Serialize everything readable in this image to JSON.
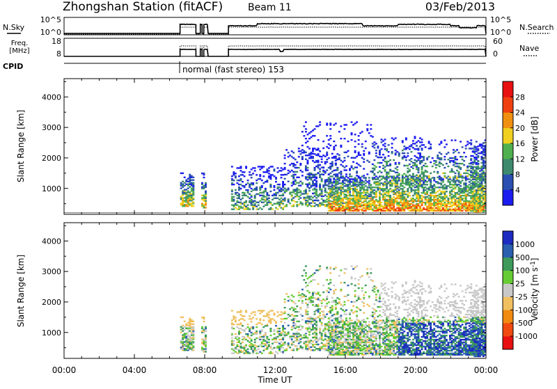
{
  "header": {
    "station": "Zhongshan Station (fitACF)",
    "beam": "Beam 11",
    "date": "03/Feb/2013"
  },
  "summary_panels": {
    "nsky_label": "N.Sky",
    "nsky_ticks": [
      "10^5",
      "10^0"
    ],
    "nsearch_label": "N.Search",
    "nsearch_ticks": [
      "10^5",
      "10^0"
    ],
    "freq_label_1": "Freq.",
    "freq_label_2": "[MHz]",
    "freq_ticks": [
      "18",
      "8"
    ],
    "nave_label": "Nave",
    "nave_ticks": [
      "60",
      "0"
    ],
    "cpid_label": "CPID",
    "cpid_text": "normal (fast stereo) 153"
  },
  "colors": {
    "power_scale": [
      "#1c1cf0",
      "#2a4fb0",
      "#3d8a6e",
      "#4fb04f",
      "#f0d020",
      "#f09010",
      "#f04010",
      "#e81010"
    ],
    "velocity_scale": [
      "#e81010",
      "#f04a10",
      "#f08a10",
      "#f0c060",
      "#c8c8c8",
      "#66cc33",
      "#3d9a5a",
      "#2a5fb0",
      "#1c2ac0"
    ],
    "ground_scatter": "#bdbdbd"
  },
  "chart_data": [
    {
      "type": "heatmap",
      "name": "power",
      "ylabel": "Slant Range [km]",
      "yticks": [
        "1000",
        "2000",
        "3000",
        "4000"
      ],
      "ylim": [
        150,
        4600
      ],
      "xlim_hours": [
        0,
        24
      ],
      "colorbar_label": "Power [dB]",
      "colorbar_ticks": [
        "4",
        "8",
        "12",
        "16",
        "20",
        "24",
        "28"
      ],
      "colorbar_range": [
        0,
        32
      ]
    },
    {
      "type": "heatmap",
      "name": "velocity",
      "ylabel": "Slant Range [km]",
      "yticks": [
        "1000",
        "2000",
        "3000",
        "4000"
      ],
      "ylim": [
        150,
        4600
      ],
      "xlim_hours": [
        0,
        24
      ],
      "colorbar_label": "Velocity [m s",
      "colorbar_label_sup": "-1",
      "colorbar_label_close": "]",
      "colorbar_ticks": [
        "-1000",
        "-500",
        "-100",
        "-25",
        "25",
        "100",
        "500",
        "1000"
      ]
    }
  ],
  "time_axis": {
    "ticks": [
      "00:00",
      "04:00",
      "08:00",
      "12:00",
      "16:00",
      "20:00",
      "00:00"
    ],
    "label": "Time UT"
  }
}
